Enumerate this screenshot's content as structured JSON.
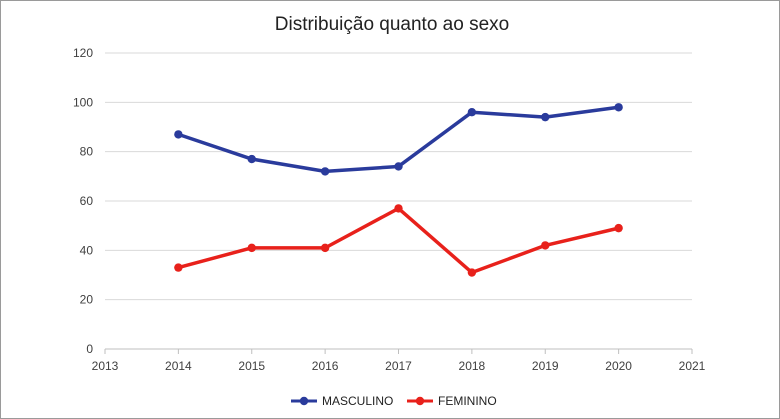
{
  "chart_data": {
    "type": "line",
    "title": "Distribuição quanto ao sexo",
    "xlabel": "",
    "ylabel": "",
    "xlim": [
      2013,
      2021
    ],
    "ylim": [
      0,
      120
    ],
    "x_ticks": [
      2013,
      2014,
      2015,
      2016,
      2017,
      2018,
      2019,
      2020,
      2021
    ],
    "y_ticks": [
      0,
      20,
      40,
      60,
      80,
      100,
      120
    ],
    "grid": true,
    "legend_position": "bottom",
    "x": [
      2014,
      2015,
      2016,
      2017,
      2018,
      2019,
      2020
    ],
    "series": [
      {
        "name": "MASCULINO",
        "color": "#2a3b9c",
        "values": [
          87,
          77,
          72,
          74,
          96,
          94,
          98
        ]
      },
      {
        "name": "FEMININO",
        "color": "#e8211b",
        "values": [
          33,
          41,
          41,
          57,
          31,
          42,
          49
        ]
      }
    ]
  }
}
